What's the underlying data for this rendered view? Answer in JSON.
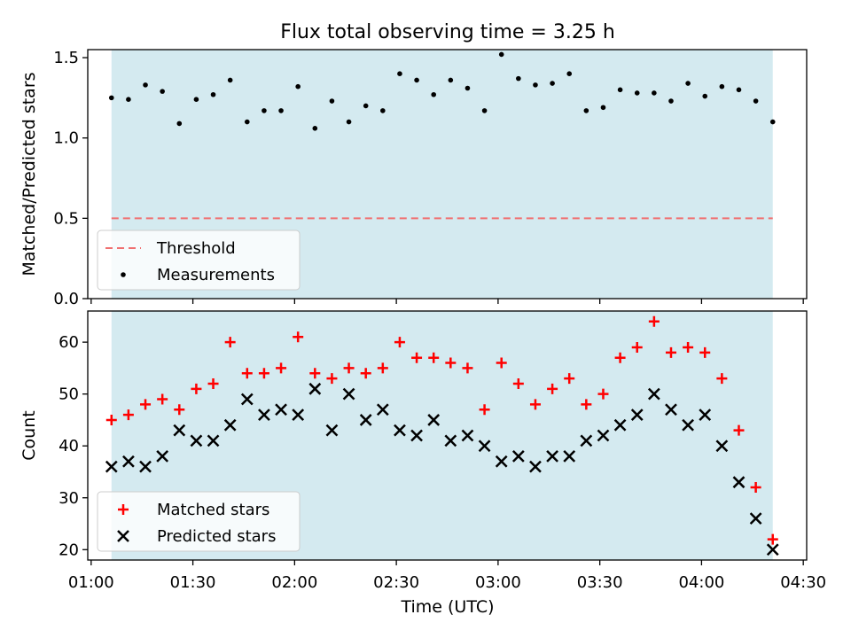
{
  "title": "Flux total observing time = 3.25 h",
  "xlabel": "Time (UTC)",
  "x_ticks": [
    "01:00",
    "01:30",
    "02:00",
    "02:30",
    "03:00",
    "03:30",
    "04:00",
    "04:30"
  ],
  "colors": {
    "observing_band": "#d4eaf0",
    "threshold": "#f07070",
    "measurements": "#000000",
    "matched": "#ff0000",
    "predicted": "#000000"
  },
  "chart_data": [
    {
      "type": "scatter",
      "ylabel": "Matched/Predicted stars",
      "ylim": [
        0.0,
        1.55
      ],
      "yticks": [
        "0.0",
        "0.5",
        "1.0",
        "1.5"
      ],
      "xlim": [
        "00:59",
        "04:31"
      ],
      "observing_window": [
        "01:06",
        "04:21"
      ],
      "threshold": {
        "name": "Threshold",
        "value": 0.5
      },
      "series": [
        {
          "name": "Measurements",
          "marker": "dot",
          "x": [
            "01:06",
            "01:11",
            "01:16",
            "01:21",
            "01:26",
            "01:31",
            "01:36",
            "01:41",
            "01:46",
            "01:51",
            "01:56",
            "02:01",
            "02:06",
            "02:11",
            "02:16",
            "02:21",
            "02:26",
            "02:31",
            "02:36",
            "02:41",
            "02:46",
            "02:51",
            "02:56",
            "03:01",
            "03:06",
            "03:11",
            "03:16",
            "03:21",
            "03:26",
            "03:31",
            "03:36",
            "03:41",
            "03:46",
            "03:51",
            "03:56",
            "04:01",
            "04:06",
            "04:11",
            "04:16",
            "04:21"
          ],
          "values": [
            1.25,
            1.24,
            1.33,
            1.29,
            1.09,
            1.24,
            1.27,
            1.36,
            1.1,
            1.17,
            1.17,
            1.32,
            1.06,
            1.23,
            1.1,
            1.2,
            1.17,
            1.4,
            1.36,
            1.27,
            1.36,
            1.31,
            1.17,
            1.52,
            1.37,
            1.33,
            1.34,
            1.4,
            1.17,
            1.19,
            1.3,
            1.28,
            1.28,
            1.23,
            1.34,
            1.26,
            1.32,
            1.3,
            1.23,
            1.1
          ]
        }
      ],
      "legend": {
        "position": "lower-left",
        "entries": [
          "Threshold",
          "Measurements"
        ]
      }
    },
    {
      "type": "scatter",
      "ylabel": "Count",
      "ylim": [
        18,
        66
      ],
      "yticks": [
        "20",
        "30",
        "40",
        "50",
        "60"
      ],
      "xlim": [
        "00:59",
        "04:31"
      ],
      "observing_window": [
        "01:06",
        "04:21"
      ],
      "series": [
        {
          "name": "Matched stars",
          "marker": "plus",
          "x": [
            "01:06",
            "01:11",
            "01:16",
            "01:21",
            "01:26",
            "01:31",
            "01:36",
            "01:41",
            "01:46",
            "01:51",
            "01:56",
            "02:01",
            "02:06",
            "02:11",
            "02:16",
            "02:21",
            "02:26",
            "02:31",
            "02:36",
            "02:41",
            "02:46",
            "02:51",
            "02:56",
            "03:01",
            "03:06",
            "03:11",
            "03:16",
            "03:21",
            "03:26",
            "03:31",
            "03:36",
            "03:41",
            "03:46",
            "03:51",
            "03:56",
            "04:01",
            "04:06",
            "04:11",
            "04:16",
            "04:21"
          ],
          "values": [
            45,
            46,
            48,
            49,
            47,
            51,
            52,
            60,
            54,
            54,
            55,
            61,
            54,
            53,
            55,
            54,
            55,
            60,
            57,
            57,
            56,
            55,
            47,
            56,
            52,
            48,
            51,
            53,
            48,
            50,
            57,
            59,
            64,
            58,
            59,
            58,
            53,
            43,
            32,
            22
          ]
        },
        {
          "name": "Predicted stars",
          "marker": "x",
          "x": [
            "01:06",
            "01:11",
            "01:16",
            "01:21",
            "01:26",
            "01:31",
            "01:36",
            "01:41",
            "01:46",
            "01:51",
            "01:56",
            "02:01",
            "02:06",
            "02:11",
            "02:16",
            "02:21",
            "02:26",
            "02:31",
            "02:36",
            "02:41",
            "02:46",
            "02:51",
            "02:56",
            "03:01",
            "03:06",
            "03:11",
            "03:16",
            "03:21",
            "03:26",
            "03:31",
            "03:36",
            "03:41",
            "03:46",
            "03:51",
            "03:56",
            "04:01",
            "04:06",
            "04:11",
            "04:16",
            "04:21"
          ],
          "values": [
            36,
            37,
            36,
            38,
            43,
            41,
            41,
            44,
            49,
            46,
            47,
            46,
            51,
            43,
            50,
            45,
            47,
            43,
            42,
            45,
            41,
            42,
            40,
            37,
            38,
            36,
            38,
            38,
            41,
            42,
            44,
            46,
            50,
            47,
            44,
            46,
            40,
            33,
            26,
            20
          ]
        }
      ],
      "legend": {
        "position": "lower-left",
        "entries": [
          "Matched stars",
          "Predicted stars"
        ]
      }
    }
  ]
}
